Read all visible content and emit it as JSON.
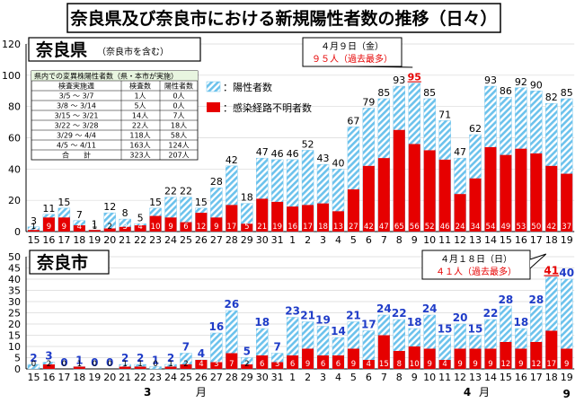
{
  "title": "奈良県及び奈良市における新規陽性者数の推移（日々）",
  "colors": {
    "total_fill": "#8fd0ef",
    "red": "#e60000",
    "blue": "#1f3cc8",
    "axis": "#000000"
  },
  "legend": {
    "total": "：陽性者数",
    "unknown": "：感染経路不明者数"
  },
  "table": {
    "title": "県内での変異株陽性者数（県・本市が実施）",
    "headers": [
      "検査実施週",
      "検査数",
      "陽性者数"
    ],
    "rows": [
      [
        "3/5 ～ 3/7",
        "1人",
        "0人"
      ],
      [
        "3/8 ～ 3/14",
        "5人",
        "0人"
      ],
      [
        "3/15 ～ 3/21",
        "14人",
        "7人"
      ],
      [
        "3/22 ～ 3/28",
        "22人",
        "18人"
      ],
      [
        "3/29 ～ 4/4",
        "118人",
        "58人"
      ],
      [
        "4/5 ～ 4/11",
        "163人",
        "124人"
      ],
      [
        "合　　計",
        "323人",
        "207人"
      ]
    ]
  },
  "month_labels": {
    "march": "3",
    "april": "4",
    "month": "月",
    "may": "9"
  },
  "chart_data": [
    {
      "type": "bar",
      "title": "奈良県",
      "subtitle": "（奈良市を含む）",
      "callout": {
        "date": "４月９日（金）",
        "text": "９５人（過去最多）"
      },
      "categories": [
        "15",
        "16",
        "17",
        "18",
        "19",
        "20",
        "21",
        "22",
        "23",
        "24",
        "25",
        "26",
        "27",
        "28",
        "29",
        "30",
        "31",
        "1",
        "2",
        "3",
        "4",
        "5",
        "6",
        "7",
        "8",
        "9",
        "10",
        "11",
        "12",
        "13",
        "14",
        "15",
        "16",
        "17",
        "18",
        "19"
      ],
      "series": [
        {
          "name": "陽性者数",
          "values": [
            3,
            11,
            15,
            7,
            1,
            12,
            8,
            5,
            15,
            22,
            22,
            15,
            28,
            42,
            18,
            47,
            46,
            46,
            52,
            43,
            40,
            67,
            79,
            85,
            93,
            95,
            85,
            71,
            47,
            62,
            93,
            86,
            92,
            90,
            82,
            85
          ]
        },
        {
          "name": "感染経路不明者数",
          "values": [
            1,
            9,
            9,
            4,
            1,
            2,
            3,
            4,
            10,
            9,
            6,
            12,
            9,
            17,
            5,
            21,
            19,
            16,
            17,
            18,
            13,
            27,
            42,
            47,
            65,
            56,
            52,
            46,
            24,
            34,
            54,
            49,
            53,
            50,
            42,
            37
          ]
        }
      ],
      "ylim": [
        0,
        120
      ],
      "yticks": [
        0,
        20,
        40,
        60,
        80,
        100,
        120
      ]
    },
    {
      "type": "bar",
      "title": "奈良市",
      "callout": {
        "date": "４月１８日（日）",
        "text": "４１人（過去最多）"
      },
      "categories": [
        "15",
        "16",
        "17",
        "18",
        "19",
        "20",
        "21",
        "22",
        "23",
        "24",
        "25",
        "26",
        "27",
        "28",
        "29",
        "30",
        "31",
        "1",
        "2",
        "3",
        "4",
        "5",
        "6",
        "7",
        "8",
        "9",
        "10",
        "11",
        "12",
        "13",
        "14",
        "15",
        "16",
        "17",
        "18",
        "19"
      ],
      "series": [
        {
          "name": "陽性者数",
          "values": [
            2,
            3,
            0,
            1,
            0,
            0,
            2,
            2,
            1,
            2,
            7,
            4,
            16,
            26,
            5,
            18,
            7,
            23,
            21,
            19,
            14,
            21,
            17,
            24,
            22,
            18,
            24,
            15,
            20,
            15,
            22,
            28,
            18,
            28,
            41,
            40
          ]
        },
        {
          "name": "感染経路不明者数",
          "values": [
            0,
            2,
            0,
            1,
            0,
            0,
            1,
            1,
            0,
            1,
            2,
            4,
            3,
            7,
            2,
            6,
            3,
            6,
            9,
            6,
            6,
            9,
            4,
            15,
            8,
            10,
            9,
            4,
            9,
            9,
            9,
            12,
            9,
            12,
            17,
            9
          ]
        }
      ],
      "ylim": [
        0,
        50
      ],
      "yticks": [
        0,
        5,
        10,
        15,
        20,
        25,
        30,
        35,
        40,
        45,
        50
      ]
    }
  ]
}
